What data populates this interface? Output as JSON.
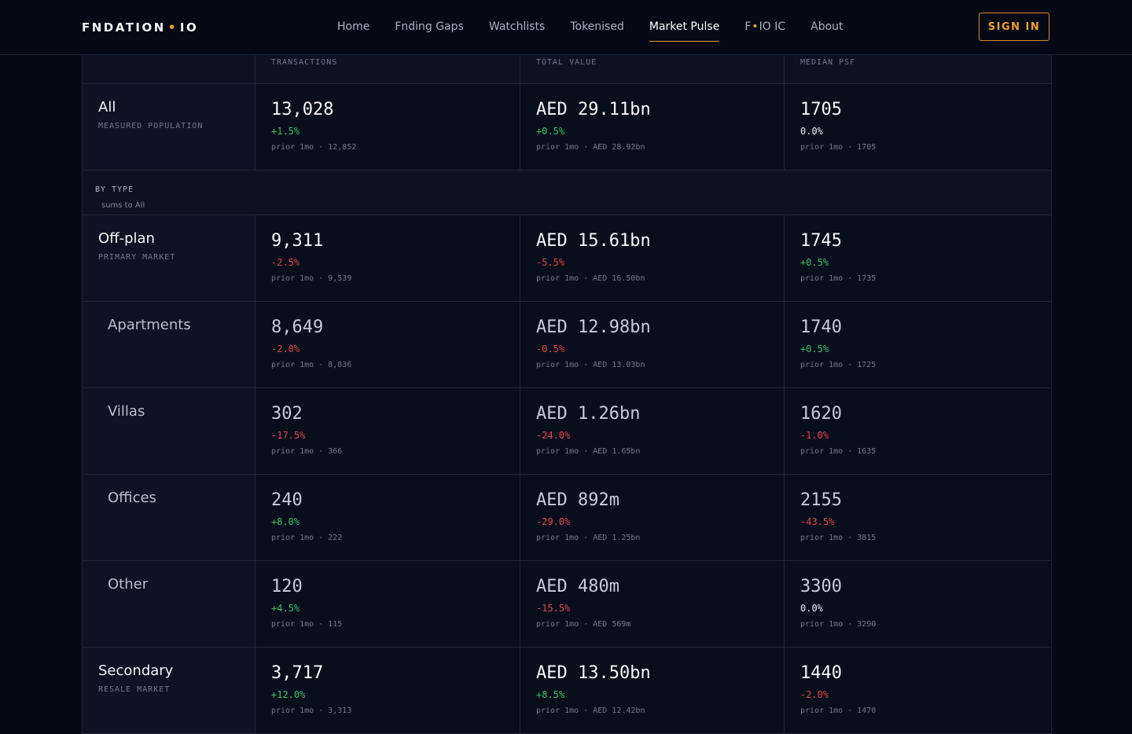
{
  "nav": {
    "brand": {
      "left": "FNDATION",
      "right": "IO"
    },
    "links": [
      {
        "text": "Home"
      },
      {
        "text": "Fnding Gaps"
      },
      {
        "text": "Watchlists"
      },
      {
        "text": "Tokenised"
      },
      {
        "text": "Market Pulse",
        "active": true
      },
      {
        "left": "F",
        "right": "IO IC"
      },
      {
        "text": "About"
      }
    ],
    "sign_in": "SIGN IN"
  },
  "table": {
    "columns": [
      "TRANSACTIONS",
      "TOTAL VALUE",
      "MEDIAN PSF"
    ],
    "rows": [
      {
        "label": "All",
        "sublabel": "MEASURED POPULATION",
        "level": 0,
        "cells": [
          {
            "value": "13,028",
            "change": "+1.5%",
            "prior": "prior 1mo · 12,852"
          },
          {
            "value": "AED 29.11bn",
            "change": "+0.5%",
            "prior": "prior 1mo · AED 28.92bn"
          },
          {
            "value": "1705",
            "change": "0.0%",
            "prior": "prior 1mo · 1705"
          }
        ]
      },
      {
        "section": "BY TYPE",
        "note": "sums to All"
      },
      {
        "label": "Off-plan",
        "sublabel": "PRIMARY MARKET",
        "level": 0,
        "cells": [
          {
            "value": "9,311",
            "change": "-2.5%",
            "prior": "prior 1mo · 9,539"
          },
          {
            "value": "AED 15.61bn",
            "change": "-5.5%",
            "prior": "prior 1mo · AED 16.50bn"
          },
          {
            "value": "1745",
            "change": "+0.5%",
            "prior": "prior 1mo · 1735"
          }
        ]
      },
      {
        "label": "Apartments",
        "level": 1,
        "cells": [
          {
            "value": "8,649",
            "change": "-2.0%",
            "prior": "prior 1mo · 8,836"
          },
          {
            "value": "AED 12.98bn",
            "change": "-0.5%",
            "prior": "prior 1mo · AED 13.03bn"
          },
          {
            "value": "1740",
            "change": "+0.5%",
            "prior": "prior 1mo · 1725"
          }
        ]
      },
      {
        "label": "Villas",
        "level": 1,
        "cells": [
          {
            "value": "302",
            "change": "-17.5%",
            "prior": "prior 1mo · 366"
          },
          {
            "value": "AED 1.26bn",
            "change": "-24.0%",
            "prior": "prior 1mo · AED 1.65bn"
          },
          {
            "value": "1620",
            "change": "-1.0%",
            "prior": "prior 1mo · 1635"
          }
        ]
      },
      {
        "label": "Offices",
        "level": 1,
        "cells": [
          {
            "value": "240",
            "change": "+8.0%",
            "prior": "prior 1mo · 222"
          },
          {
            "value": "AED 892m",
            "change": "-29.0%",
            "prior": "prior 1mo · AED 1.25bn"
          },
          {
            "value": "2155",
            "change": "-43.5%",
            "prior": "prior 1mo · 3815"
          }
        ]
      },
      {
        "label": "Other",
        "level": 1,
        "cells": [
          {
            "value": "120",
            "change": "+4.5%",
            "prior": "prior 1mo · 115"
          },
          {
            "value": "AED 480m",
            "change": "-15.5%",
            "prior": "prior 1mo · AED 569m"
          },
          {
            "value": "3300",
            "change": "0.0%",
            "prior": "prior 1mo · 3290"
          }
        ]
      },
      {
        "label": "Secondary",
        "sublabel": "RESALE MARKET",
        "level": 0,
        "cells": [
          {
            "value": "3,717",
            "change": "+12.0%",
            "prior": "prior 1mo · 3,313"
          },
          {
            "value": "AED 13.50bn",
            "change": "+8.5%",
            "prior": "prior 1mo · AED 12.42bn"
          },
          {
            "value": "1440",
            "change": "-2.0%",
            "prior": "prior 1mo · 1470"
          }
        ]
      }
    ]
  }
}
